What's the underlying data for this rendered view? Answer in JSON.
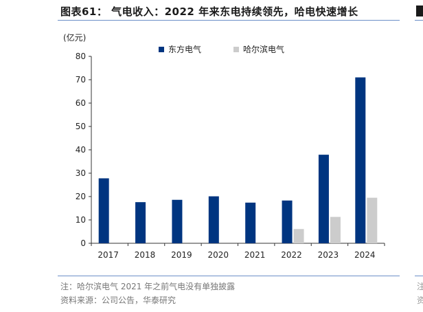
{
  "title": "图表61：  气电收入：2022 年来东电持续领先，哈电快速增长",
  "unit_label": "(亿元)",
  "note": "注：哈尔滨电气 2021 年之前气电没有单独披露",
  "source": "资料来源：公司公告，华泰研究",
  "edge_glyphs": [
    "注",
    "资"
  ],
  "colors": {
    "dongfang": "#003580",
    "harbin": "#cccccc",
    "rule": "#6b8fc7"
  },
  "chart_data": {
    "type": "bar",
    "categories": [
      "2017",
      "2018",
      "2019",
      "2020",
      "2021",
      "2022",
      "2023",
      "2024"
    ],
    "series": [
      {
        "name": "东方电气",
        "values": [
          27.8,
          17.6,
          18.6,
          20.1,
          17.4,
          18.3,
          37.9,
          71.0
        ]
      },
      {
        "name": "哈尔滨电气",
        "values": [
          null,
          null,
          null,
          null,
          null,
          6.1,
          11.3,
          19.5
        ]
      }
    ],
    "ylim": [
      0,
      80
    ],
    "yticks": [
      0,
      10,
      20,
      30,
      40,
      50,
      60,
      70,
      80
    ],
    "legend_position": "top-center",
    "grid": false
  }
}
